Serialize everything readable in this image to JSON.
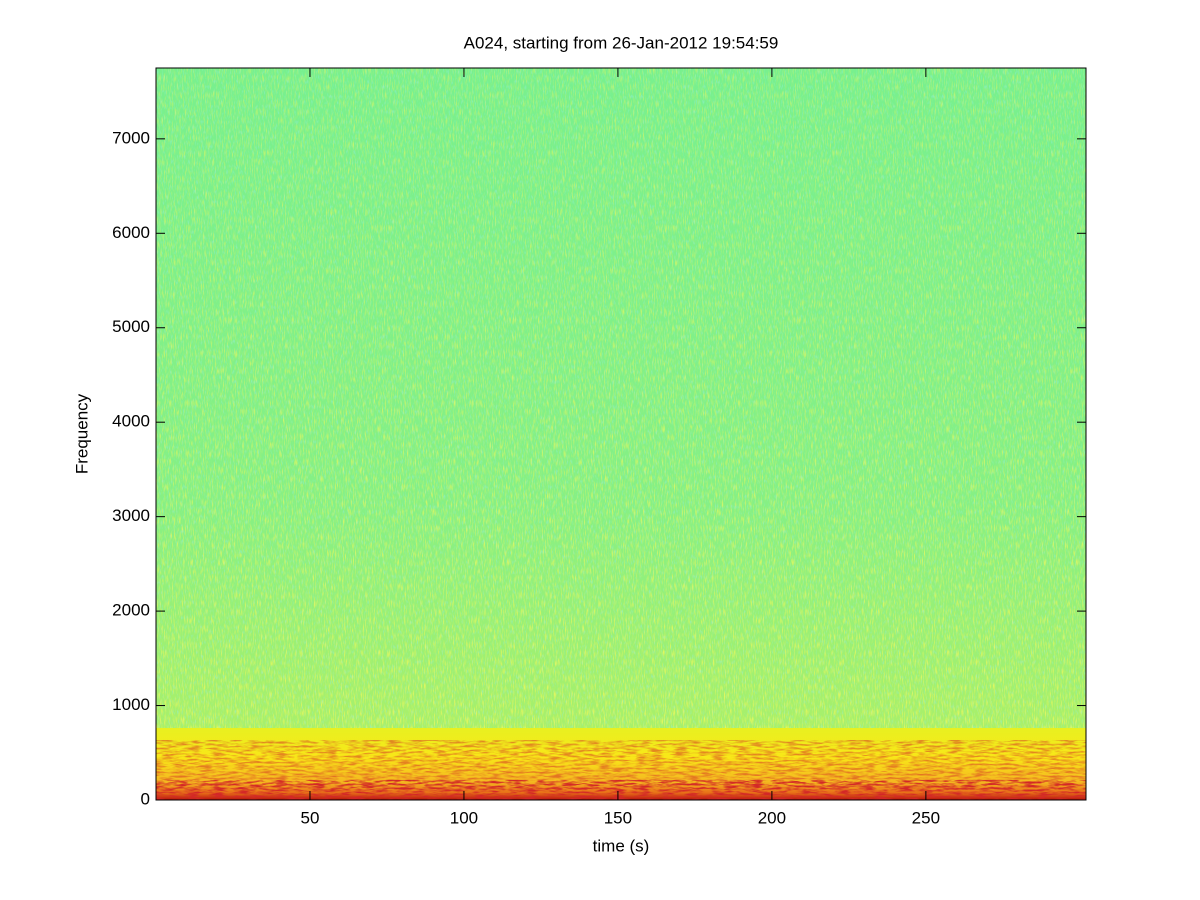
{
  "chart_data": {
    "type": "spectrogram",
    "title": "A024, starting from 26-Jan-2012 19:54:59",
    "x_label": "time (s)",
    "y_label": "Frequency",
    "xlim": [
      0,
      302
    ],
    "xticks": [
      50,
      100,
      150,
      200,
      250
    ],
    "ylim": [
      0,
      7750
    ],
    "yticks": [
      0,
      1000,
      2000,
      3000,
      4000,
      5000,
      6000,
      7000
    ]
  }
}
